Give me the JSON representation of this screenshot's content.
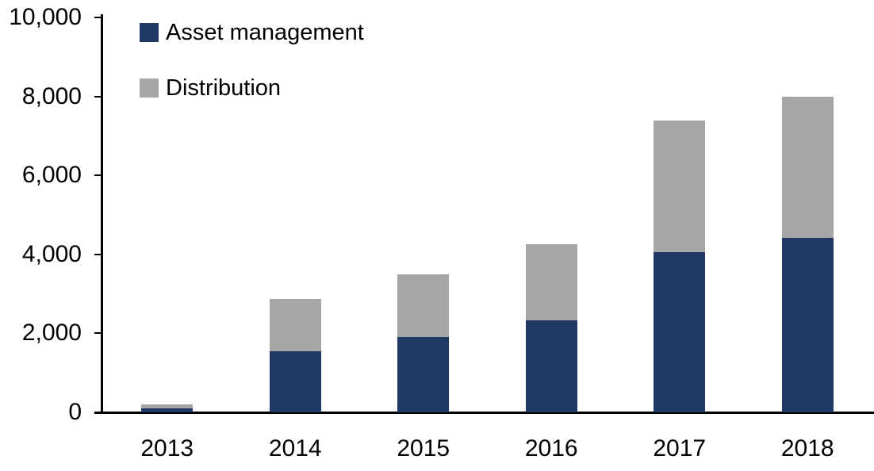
{
  "chart_data": {
    "type": "bar",
    "stacked": true,
    "title": "",
    "xlabel": "",
    "ylabel": "",
    "categories": [
      "2013",
      "2014",
      "2015",
      "2016",
      "2017",
      "2018"
    ],
    "series": [
      {
        "name": "Asset management",
        "color": "#1F3864",
        "values": [
          100,
          1550,
          1900,
          2320,
          4050,
          4420
        ]
      },
      {
        "name": "Distribution",
        "color": "#A6A6A6",
        "values": [
          100,
          1320,
          1600,
          1930,
          3340,
          3580
        ]
      }
    ],
    "totals": [
      200,
      2870,
      3500,
      4250,
      7390,
      8000
    ],
    "ylim": [
      0,
      10000
    ],
    "yticks": [
      0,
      2000,
      4000,
      6000,
      8000,
      10000
    ],
    "ytick_labels": [
      "0",
      "2,000",
      "4,000",
      "6,000",
      "8,000",
      "10,000"
    ],
    "grid": false,
    "legend_position": "top-left-inside",
    "axis_color": "#000000",
    "text_color": "#000000",
    "background": "#FFFFFF"
  }
}
